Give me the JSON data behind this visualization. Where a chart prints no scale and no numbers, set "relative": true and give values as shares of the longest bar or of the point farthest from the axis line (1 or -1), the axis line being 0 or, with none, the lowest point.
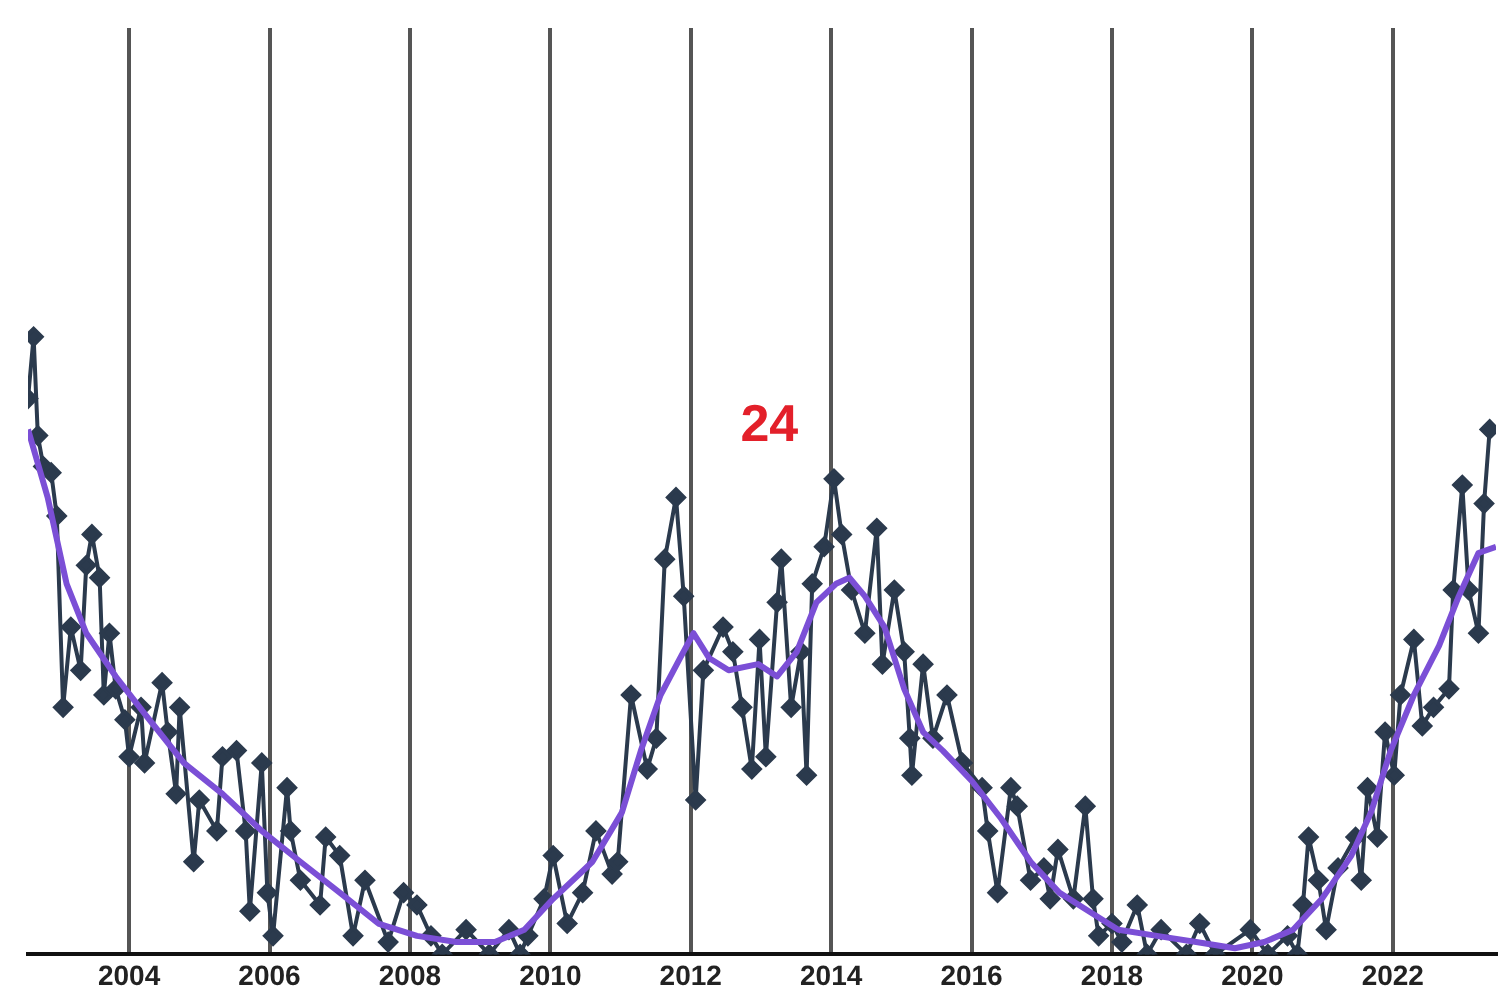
{
  "chart_data": {
    "type": "line",
    "relative": true,
    "xlim": [
      2002.56,
      2023.47
    ],
    "xticks": [
      2004,
      2006,
      2008,
      2010,
      2012,
      2014,
      2016,
      2018,
      2020,
      2022
    ],
    "grid": "x",
    "legend": false,
    "marker": "diamond",
    "annotations": [
      "24"
    ],
    "series": [
      {
        "color": "#2b3a4d",
        "x": [
          2002.56,
          2002.64,
          2002.7,
          2002.78,
          2002.89,
          2002.97,
          2003.06,
          2003.17,
          2003.31,
          2003.39,
          2003.47,
          2003.58,
          2003.64,
          2003.72,
          2003.81,
          2003.94,
          2004.0,
          2004.17,
          2004.22,
          2004.47,
          2004.55,
          2004.67,
          2004.72,
          2004.92,
          2005.0,
          2005.25,
          2005.33,
          2005.53,
          2005.66,
          2005.72,
          2005.89,
          2005.97,
          2006.05,
          2006.25,
          2006.3,
          2006.44,
          2006.72,
          2006.8,
          2007.0,
          2007.19,
          2007.36,
          2007.69,
          2007.91,
          2008.1,
          2008.3,
          2008.46,
          2008.8,
          2009.13,
          2009.41,
          2009.57,
          2009.68,
          2009.91,
          2010.04,
          2010.24,
          2010.46,
          2010.65,
          2010.88,
          2010.96,
          2011.15,
          2011.38,
          2011.51,
          2011.63,
          2011.79,
          2011.9,
          2012.07,
          2012.18,
          2012.46,
          2012.6,
          2012.73,
          2012.87,
          2012.98,
          2013.07,
          2013.23,
          2013.29,
          2013.43,
          2013.57,
          2013.65,
          2013.73,
          2013.9,
          2014.04,
          2014.15,
          2014.29,
          2014.48,
          2014.65,
          2014.73,
          2014.9,
          2015.04,
          2015.12,
          2015.15,
          2015.31,
          2015.45,
          2015.65,
          2015.87,
          2016.15,
          2016.23,
          2016.37,
          2016.56,
          2016.65,
          2016.84,
          2017.03,
          2017.12,
          2017.23,
          2017.45,
          2017.62,
          2017.73,
          2017.81,
          2018.0,
          2018.14,
          2018.36,
          2018.5,
          2018.7,
          2019.06,
          2019.25,
          2019.47,
          2019.97,
          2020.22,
          2020.5,
          2020.64,
          2020.72,
          2020.8,
          2020.94,
          2021.05,
          2021.22,
          2021.47,
          2021.55,
          2021.64,
          2021.78,
          2021.89,
          2022.02,
          2022.11,
          2022.3,
          2022.42,
          2022.58,
          2022.8,
          2022.86,
          2022.99,
          2023.08,
          2023.22,
          2023.3,
          2023.38
        ],
        "values": [
          0.9,
          1.0,
          0.84,
          0.79,
          0.78,
          0.71,
          0.4,
          0.53,
          0.46,
          0.63,
          0.68,
          0.61,
          0.42,
          0.52,
          0.43,
          0.38,
          0.32,
          0.4,
          0.31,
          0.44,
          0.36,
          0.26,
          0.4,
          0.15,
          0.25,
          0.2,
          0.32,
          0.33,
          0.2,
          0.07,
          0.31,
          0.1,
          0.03,
          0.27,
          0.2,
          0.12,
          0.08,
          0.19,
          0.16,
          0.03,
          0.12,
          0.02,
          0.1,
          0.08,
          0.03,
          0.0,
          0.04,
          0.0,
          0.04,
          0.0,
          0.03,
          0.09,
          0.16,
          0.05,
          0.1,
          0.2,
          0.13,
          0.15,
          0.42,
          0.3,
          0.35,
          0.64,
          0.74,
          0.58,
          0.25,
          0.46,
          0.53,
          0.49,
          0.4,
          0.3,
          0.51,
          0.32,
          0.57,
          0.64,
          0.4,
          0.49,
          0.29,
          0.6,
          0.66,
          0.77,
          0.68,
          0.59,
          0.52,
          0.69,
          0.47,
          0.59,
          0.49,
          0.35,
          0.29,
          0.47,
          0.35,
          0.42,
          0.31,
          0.27,
          0.2,
          0.1,
          0.27,
          0.24,
          0.12,
          0.14,
          0.09,
          0.17,
          0.09,
          0.24,
          0.09,
          0.03,
          0.05,
          0.02,
          0.08,
          0.0,
          0.04,
          0.0,
          0.05,
          0.0,
          0.04,
          0.0,
          0.03,
          0.0,
          0.08,
          0.19,
          0.12,
          0.04,
          0.14,
          0.19,
          0.12,
          0.27,
          0.19,
          0.36,
          0.29,
          0.42,
          0.51,
          0.37,
          0.4,
          0.43,
          0.59,
          0.76,
          0.59,
          0.52,
          0.73,
          0.85
        ]
      },
      {
        "color": "#7b4fd6",
        "marker": "none",
        "x": [
          2002.56,
          2002.84,
          2003.11,
          2003.39,
          2003.81,
          2004.22,
          2004.78,
          2005.33,
          2005.89,
          2006.44,
          2007.0,
          2007.55,
          2008.1,
          2008.66,
          2009.21,
          2009.63,
          2010.04,
          2010.6,
          2011.02,
          2011.29,
          2011.57,
          2011.85,
          2012.04,
          2012.26,
          2012.54,
          2012.96,
          2013.23,
          2013.51,
          2013.79,
          2014.07,
          2014.26,
          2014.48,
          2014.76,
          2015.04,
          2015.31,
          2015.59,
          2016.01,
          2016.42,
          2016.84,
          2017.25,
          2017.67,
          2018.09,
          2018.64,
          2019.2,
          2019.75,
          2020.17,
          2020.58,
          2020.99,
          2021.41,
          2021.69,
          2021.97,
          2022.3,
          2022.66,
          2022.94,
          2023.22,
          2023.47
        ],
        "values": [
          0.85,
          0.74,
          0.6,
          0.52,
          0.45,
          0.39,
          0.31,
          0.26,
          0.2,
          0.15,
          0.1,
          0.05,
          0.03,
          0.02,
          0.02,
          0.04,
          0.09,
          0.15,
          0.23,
          0.33,
          0.42,
          0.48,
          0.52,
          0.48,
          0.46,
          0.47,
          0.45,
          0.49,
          0.57,
          0.6,
          0.61,
          0.58,
          0.53,
          0.43,
          0.36,
          0.33,
          0.28,
          0.22,
          0.15,
          0.1,
          0.07,
          0.04,
          0.03,
          0.02,
          0.01,
          0.02,
          0.04,
          0.09,
          0.16,
          0.23,
          0.33,
          0.42,
          0.5,
          0.58,
          0.65,
          0.66
        ]
      }
    ]
  }
}
